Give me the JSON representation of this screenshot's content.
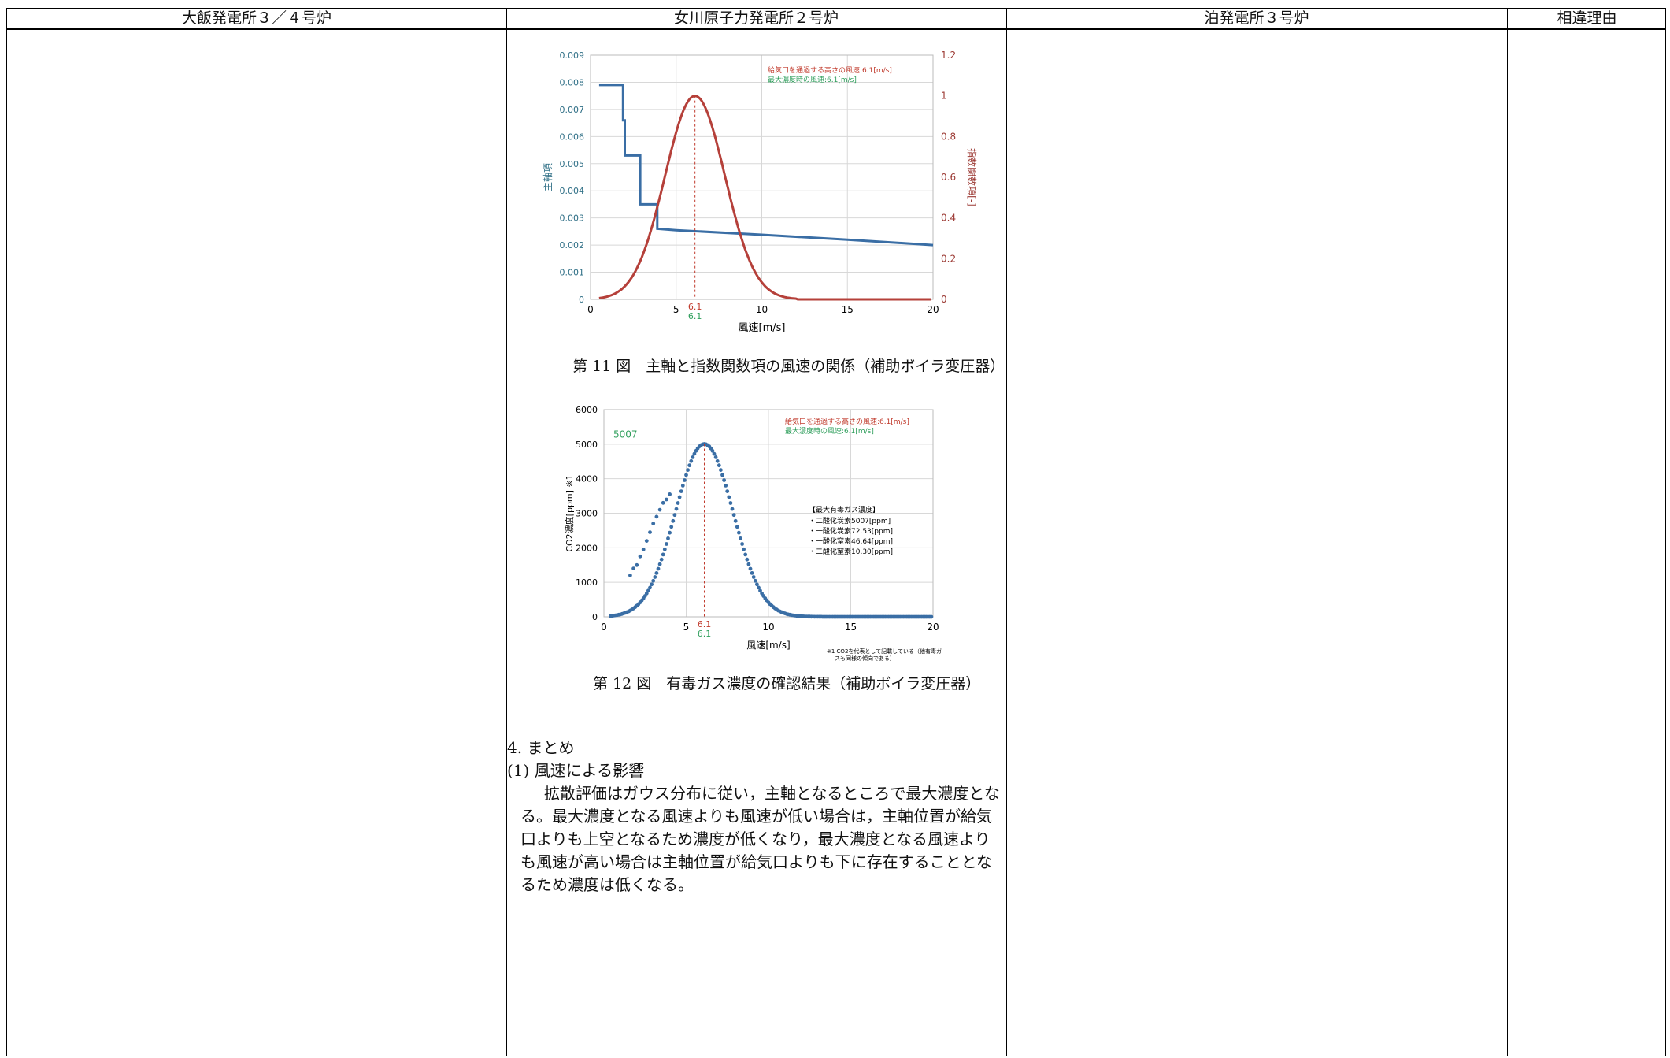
{
  "header": {
    "col1": "大飯発電所３／４号炉",
    "col2": "女川原子力発電所２号炉",
    "col3": "泊発電所３号炉",
    "col4": "相違理由"
  },
  "figure11": {
    "caption": "第 11 図　主軸と指数関数項の風速の関係（補助ボイラ変圧器）",
    "legend_red": "給気口を通過する高さの風速:6.1[m/s]",
    "legend_green": "最大濃度時の風速:6.1[m/s]",
    "marker_red": "6.1",
    "marker_green": "6.1"
  },
  "figure12": {
    "caption": "第 12 図　有毒ガス濃度の確認結果（補助ボイラ変圧器）",
    "legend_red": "給気口を通過する高さの風速:6.1[m/s]",
    "legend_green": "最大濃度時の風速:6.1[m/s]",
    "peak_label": "5007",
    "box_title": "【最大有毒ガス濃度】",
    "box_lines": [
      "・二酸化炭素5007[ppm]",
      "・一酸化炭素72.53[ppm]",
      "・一酸化窒素46.64[ppm]",
      "・二酸化窒素10.30[ppm]"
    ],
    "note_line1": "※1 CO2を代表として記載している（他有毒ガ",
    "note_line2": "スも同様の傾向である）",
    "marker_red": "6.1",
    "marker_green": "6.1"
  },
  "chart_data": [
    {
      "type": "line",
      "title": "",
      "xlabel": "風速[m/s]",
      "ylabel": "主軸項",
      "y2label": "指数関数項[-]",
      "xlim": [
        0,
        20
      ],
      "ylim": [
        0,
        0.009
      ],
      "y2lim": [
        0,
        1.2
      ],
      "xticks": [
        0,
        5,
        10,
        15,
        20
      ],
      "yticks": [
        "0",
        "0.001",
        "0.002",
        "0.003",
        "0.004",
        "0.005",
        "0.006",
        "0.007",
        "0.008",
        "0.009"
      ],
      "y2ticks": [
        "0",
        "0.2",
        "0.4",
        "0.6",
        "0.8",
        "1",
        "1.2"
      ],
      "grid": true,
      "series": [
        {
          "name": "",
          "axis": "left",
          "color": "#3a6ea5",
          "x": [
            0.5,
            1.9,
            1.9,
            2.0,
            2.0,
            2.9,
            2.9,
            3.9,
            3.9,
            5,
            10,
            15,
            20
          ],
          "y": [
            0.0079,
            0.0079,
            0.0066,
            0.0066,
            0.0053,
            0.0053,
            0.0035,
            0.0035,
            0.0026,
            0.00255,
            0.00238,
            0.0022,
            0.002
          ]
        },
        {
          "name": "",
          "axis": "right",
          "color": "#b5403a",
          "x": [
            0.5,
            1,
            2,
            3,
            4,
            5,
            6.1,
            7,
            8,
            9,
            10,
            11,
            12,
            13,
            14,
            15,
            16,
            18,
            20
          ],
          "y": [
            0.02,
            0.05,
            0.17,
            0.39,
            0.67,
            0.91,
            1.0,
            0.92,
            0.68,
            0.41,
            0.2,
            0.08,
            0.025,
            0.006,
            0.0,
            0.0,
            0.0,
            0.0,
            0.0
          ]
        }
      ],
      "annotations": [
        "6.1",
        "6.1"
      ]
    },
    {
      "type": "scatter",
      "title": "",
      "xlabel": "風速[m/s]",
      "ylabel": "CO2濃度[ppm] ※1",
      "xlim": [
        0,
        20
      ],
      "ylim": [
        0,
        6000
      ],
      "xticks": [
        0,
        5,
        10,
        15,
        20
      ],
      "yticks": [
        0,
        1000,
        2000,
        3000,
        4000,
        5000,
        6000
      ],
      "grid": true,
      "series": [
        {
          "name": "",
          "color": "#3a6ea5",
          "peak": {
            "x": 6.1,
            "y": 5007
          },
          "outliers": {
            "x": [
              1.6,
              1.8,
              2.0,
              2.2,
              2.4,
              2.6,
              2.8,
              3.0,
              3.2,
              3.4,
              3.6,
              3.8,
              4.0
            ],
            "y": [
              1200,
              1400,
              1500,
              1750,
              1950,
              2200,
              2450,
              2700,
              2900,
              3100,
              3300,
              3400,
              3550
            ]
          }
        }
      ],
      "reference_line": 5007,
      "annotations": [
        "5007",
        "6.1",
        "6.1"
      ]
    }
  ],
  "summary": {
    "heading": "4. まとめ",
    "subheading": "(1) 風速による影響",
    "lines": [
      "拡散評価はガウス分布に従い，主軸となるところで最大濃度とな",
      "る。最大濃度となる風速よりも風速が低い場合は，主軸位置が給気",
      "口よりも上空となるため濃度が低くなり，最大濃度となる風速より",
      "も風速が高い場合は主軸位置が給気口よりも下に存在することとな",
      "るため濃度は低くなる。"
    ]
  }
}
